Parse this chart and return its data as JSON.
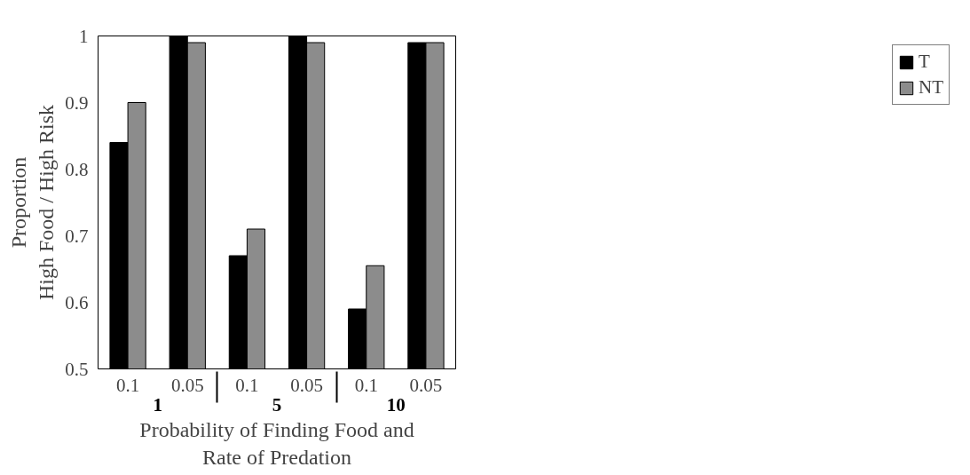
{
  "chart_data": {
    "type": "bar",
    "xlabel": "Probability of Finding Food and\nRate of Predation",
    "ylabel": "Proportion\nHigh Food / High Risk",
    "categories": [
      "0.1",
      "0.05",
      "0.1",
      "0.05",
      "0.1",
      "0.05"
    ],
    "annotations": [
      "1",
      "5",
      "10"
    ],
    "series": [
      {
        "name": "T",
        "color": "#000000",
        "values": [
          0.84,
          1.0,
          0.67,
          1.0,
          0.59,
          0.99
        ]
      },
      {
        "name": "NT",
        "color": "#8c8c8c",
        "values": [
          0.9,
          0.99,
          0.71,
          0.99,
          0.655,
          0.99
        ]
      }
    ],
    "ylim": [
      0.5,
      1
    ],
    "yticks": [
      0.5,
      0.6,
      0.7,
      0.8,
      0.9,
      1
    ],
    "grid": false,
    "legend": "right"
  }
}
